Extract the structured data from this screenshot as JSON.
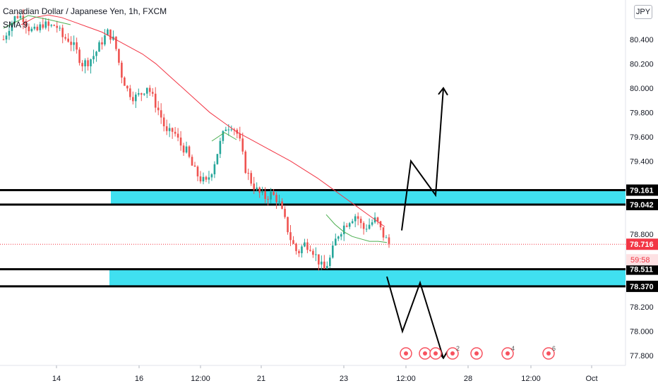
{
  "header": {
    "symbol_title": "Canadian Dollar / Japanese Yen, 1h, FXCM",
    "indicator": "SMA 9",
    "currency": "JPY"
  },
  "colors": {
    "up": "#26a69a",
    "down": "#ef5350",
    "sma": "#f23645",
    "sma_fast": "#4caf50",
    "zone": "#40e0f0",
    "zone_line": "#000000",
    "price_badge": "#f23645",
    "event_icon": "#f7525f"
  },
  "chart_data": {
    "type": "candlestick",
    "y_ticks": [
      "80.400",
      "80.200",
      "80.000",
      "79.800",
      "79.600",
      "79.400",
      "78.800",
      "78.200",
      "78.000",
      "77.800"
    ],
    "ylim": [
      77.72,
      80.66
    ],
    "x_ticks": [
      "14",
      "16",
      "12:00",
      "21",
      "23",
      "12:00",
      "28",
      "12:00",
      "Oct"
    ],
    "price_labels": {
      "level_1": "79.161",
      "level_2": "79.042",
      "current": "78.716",
      "countdown": "59:58",
      "level_3": "78.511",
      "level_4": "78.370"
    },
    "levels": [
      79.161,
      79.042,
      78.511,
      78.37
    ],
    "current_price": 78.716,
    "zones": [
      {
        "top": 79.161,
        "bottom": 79.042
      },
      {
        "top": 78.511,
        "bottom": 78.37
      }
    ],
    "scenario_up": [
      [
        78.83,
        79.4,
        79.12,
        80.0
      ]
    ],
    "scenario_down": [
      [
        78.45,
        78.0,
        78.4,
        77.78
      ]
    ],
    "close_path": [
      80.4,
      80.52,
      80.6,
      80.58,
      80.48,
      80.46,
      80.53,
      80.5,
      80.52,
      80.42,
      80.4,
      80.32,
      80.2,
      80.22,
      80.28,
      80.38,
      80.46,
      80.38,
      80.12,
      79.98,
      79.92,
      79.95,
      80.02,
      79.9,
      79.78,
      79.62,
      79.65,
      79.54,
      79.48,
      79.34,
      79.26,
      79.22,
      79.34,
      79.52,
      79.68,
      79.7,
      79.6,
      79.34,
      79.22,
      79.14,
      79.1,
      79.13,
      79.08,
      78.92,
      78.75,
      78.64,
      78.72,
      78.7,
      78.6,
      78.5,
      78.6,
      78.78,
      78.86,
      78.92,
      78.96,
      78.84,
      78.88,
      78.92,
      78.8,
      78.72
    ],
    "sma_path": [
      80.52,
      80.58,
      80.6,
      80.58,
      80.54,
      80.5,
      80.46,
      80.4,
      80.34,
      80.28,
      80.2,
      80.1,
      80.0,
      79.9,
      79.8,
      79.72,
      79.64,
      79.58,
      79.52,
      79.46,
      79.4,
      79.33,
      79.26,
      79.18,
      79.1,
      79.02,
      78.94,
      78.86
    ],
    "sma_fast_path": [
      78.96,
      78.88,
      78.82,
      78.78,
      78.76,
      78.74,
      78.74,
      78.73
    ]
  },
  "events": [
    "",
    "",
    "",
    "",
    "",
    "2",
    "",
    "4",
    "6"
  ]
}
